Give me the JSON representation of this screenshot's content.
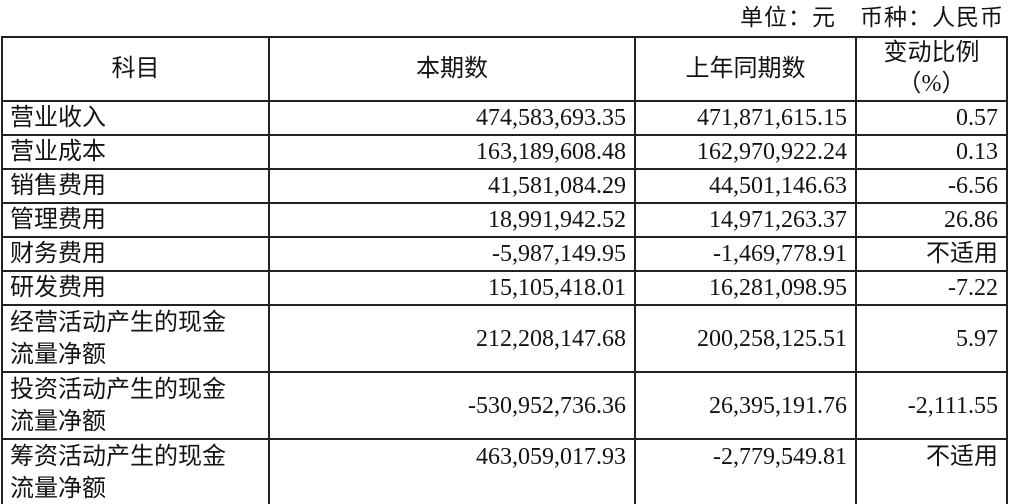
{
  "meta": {
    "caption": "单位：元　币种：人民币"
  },
  "table": {
    "columns": {
      "subject": "科目",
      "current_period": "本期数",
      "prior_period": "上年同期数",
      "change_ratio": "变动比例\n（%）"
    },
    "rows": [
      {
        "label": "营业收入",
        "current": "474,583,693.35",
        "prior": "471,871,615.15",
        "change": "0.57"
      },
      {
        "label": "营业成本",
        "current": "163,189,608.48",
        "prior": "162,970,922.24",
        "change": "0.13"
      },
      {
        "label": "销售费用",
        "current": "41,581,084.29",
        "prior": "44,501,146.63",
        "change": "-6.56"
      },
      {
        "label": "管理费用",
        "current": "18,991,942.52",
        "prior": "14,971,263.37",
        "change": "26.86"
      },
      {
        "label": "财务费用",
        "current": "-5,987,149.95",
        "prior": "-1,469,778.91",
        "change": "不适用"
      },
      {
        "label": "研发费用",
        "current": "15,105,418.01",
        "prior": "16,281,098.95",
        "change": "-7.22"
      },
      {
        "label": "经营活动产生的现金\n流量净额",
        "current": "212,208,147.68",
        "prior": "200,258,125.51",
        "change": "5.97"
      },
      {
        "label": "投资活动产生的现金\n流量净额",
        "current": "-530,952,736.36",
        "prior": "26,395,191.76",
        "change": "-2,111.55"
      },
      {
        "label": "筹资活动产生的现金\n流量净额",
        "current": "463,059,017.93",
        "prior": "-2,779,549.81",
        "change": "不适用"
      }
    ]
  }
}
